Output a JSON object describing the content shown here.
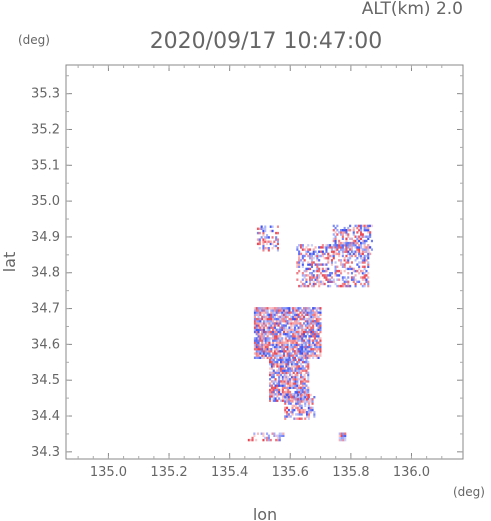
{
  "header": {
    "altitude": "ALT(km) 2.0",
    "timestamp": "2020/09/17 10:47:00",
    "y_unit": "(deg)",
    "x_unit": "(deg)"
  },
  "chart_data": {
    "type": "heatmap",
    "title": "2020/09/17 10:47:00",
    "subtitle": "ALT(km) 2.0",
    "xlabel": "lon",
    "ylabel": "lat",
    "xlim": [
      134.86,
      136.17
    ],
    "ylim": [
      34.28,
      35.38
    ],
    "x_ticks": [
      135.0,
      135.2,
      135.4,
      135.6,
      135.8,
      136.0
    ],
    "x_tick_labels": [
      "135.0",
      "135.2",
      "135.4",
      "135.6",
      "135.8",
      "136.0"
    ],
    "y_ticks": [
      34.3,
      34.4,
      34.5,
      34.6,
      34.7,
      34.8,
      34.9,
      35.0,
      35.1,
      35.2,
      35.3
    ],
    "y_tick_labels": [
      "34.3",
      "34.4",
      "34.5",
      "34.6",
      "34.7",
      "34.8",
      "34.9",
      "35.0",
      "35.1",
      "35.2",
      "35.3"
    ],
    "colors": {
      "positive": "#e8434f",
      "negative": "#3a4ff0",
      "axis": "#888888"
    },
    "grid": false,
    "regions": [
      {
        "lon": [
          135.48,
          135.7
        ],
        "lat": [
          34.56,
          34.7
        ],
        "density": 0.85
      },
      {
        "lon": [
          135.53,
          135.66
        ],
        "lat": [
          34.44,
          34.56
        ],
        "density": 0.8
      },
      {
        "lon": [
          135.58,
          135.68
        ],
        "lat": [
          34.39,
          34.46
        ],
        "density": 0.55
      },
      {
        "lon": [
          135.62,
          135.86
        ],
        "lat": [
          34.76,
          34.88
        ],
        "density": 0.45
      },
      {
        "lon": [
          135.74,
          135.87
        ],
        "lat": [
          34.85,
          34.93
        ],
        "density": 0.55
      },
      {
        "lon": [
          135.49,
          135.56
        ],
        "lat": [
          34.86,
          34.93
        ],
        "density": 0.4
      },
      {
        "lon": [
          135.46,
          135.58
        ],
        "lat": [
          34.33,
          34.35
        ],
        "density": 0.35
      },
      {
        "lon": [
          135.76,
          135.78
        ],
        "lat": [
          34.33,
          34.35
        ],
        "density": 0.9
      }
    ]
  }
}
